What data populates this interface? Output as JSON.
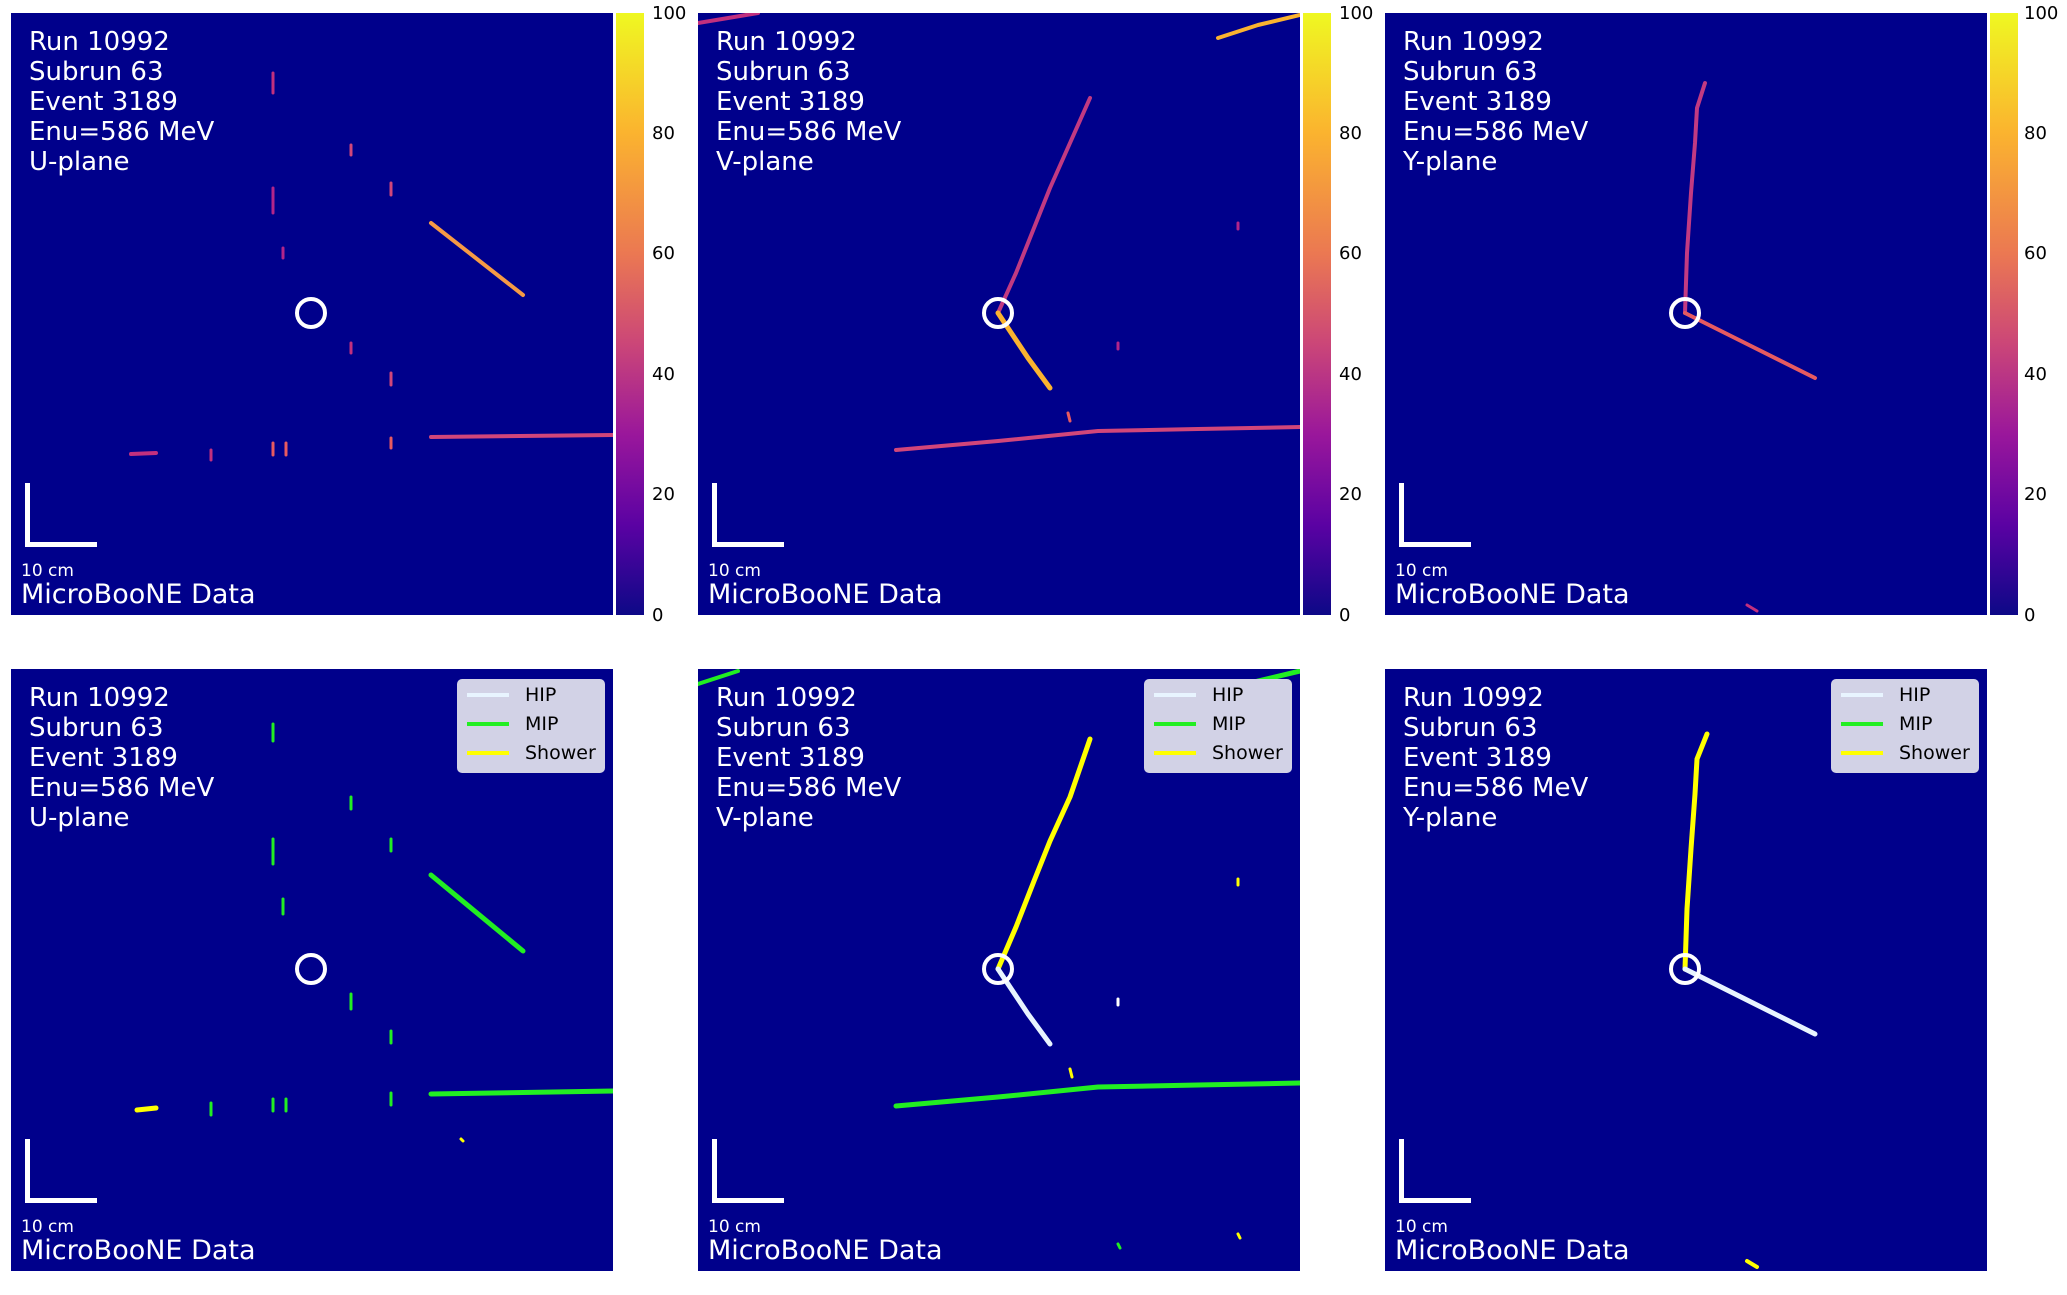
{
  "colors": {
    "background": "#00008b",
    "hip": "#e8f4ff",
    "mip": "#22ee22",
    "shower": "#ffff00",
    "vertex": "#ffffff"
  },
  "event_info": {
    "run": "Run 10992",
    "subrun": "Subrun 63",
    "event": "Event 3189",
    "enu": "Enu=586 MeV"
  },
  "planes": [
    {
      "label": "U-plane"
    },
    {
      "label": "V-plane"
    },
    {
      "label": "Y-plane"
    }
  ],
  "scale_bar": {
    "label": "10 cm"
  },
  "data_label": "MicroBooNE Data",
  "legend": [
    {
      "label": "HIP"
    },
    {
      "label": "MIP"
    },
    {
      "label": "Shower"
    }
  ],
  "colorbar": {
    "min": 0,
    "max": 100,
    "ticks": [
      "0",
      "20",
      "40",
      "60",
      "80",
      "100"
    ],
    "colormap": "plasma"
  }
}
